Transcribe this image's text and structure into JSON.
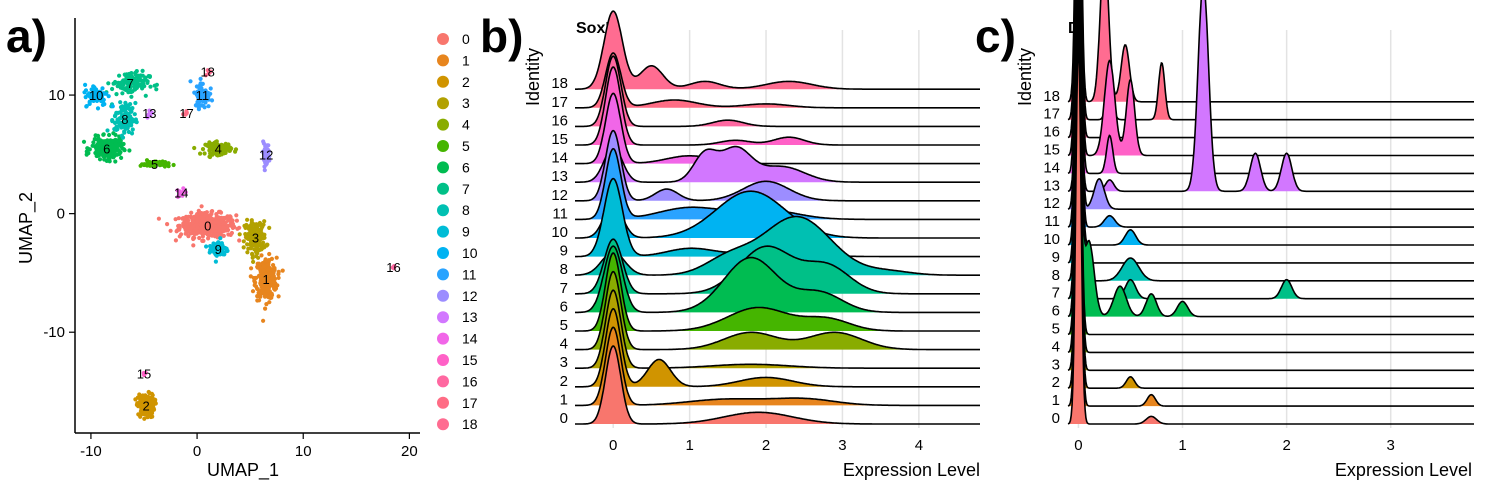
{
  "panels": {
    "a": {
      "label": "a)"
    },
    "b": {
      "label": "b)"
    },
    "c": {
      "label": "c)"
    }
  },
  "palette": [
    "#F8766D",
    "#E7851E",
    "#D09400",
    "#B2A100",
    "#89AC00",
    "#45B500",
    "#00BC51",
    "#00C087",
    "#00C0B2",
    "#00BCD6",
    "#00B3F2",
    "#29A3FF",
    "#9C8DFF",
    "#D277FF",
    "#F166E8",
    "#FF61C7",
    "#FF68A1",
    "#FF6C85",
    "#FF6C91"
  ],
  "chart_data": [
    {
      "type": "scatter",
      "xlabel": "UMAP_1",
      "ylabel": "UMAP_2",
      "xticks": [
        -10,
        0,
        10,
        20
      ],
      "yticks": [
        -10,
        0,
        10
      ],
      "xlim": [
        -11.5,
        21
      ],
      "ylim": [
        -18.5,
        16.5
      ],
      "legend": [
        "0",
        "1",
        "2",
        "3",
        "4",
        "5",
        "6",
        "7",
        "8",
        "9",
        "10",
        "11",
        "12",
        "13",
        "14",
        "15",
        "16",
        "17",
        "18"
      ],
      "legend_position": "right",
      "clusters": [
        {
          "id": "0",
          "x": 1.0,
          "y": -1.0
        },
        {
          "id": "1",
          "x": 6.5,
          "y": -5.5
        },
        {
          "id": "2",
          "x": -4.8,
          "y": -16.2
        },
        {
          "id": "3",
          "x": 5.5,
          "y": -2.0
        },
        {
          "id": "4",
          "x": 2.0,
          "y": 5.5
        },
        {
          "id": "5",
          "x": -4.0,
          "y": 4.2
        },
        {
          "id": "6",
          "x": -8.5,
          "y": 5.5
        },
        {
          "id": "7",
          "x": -6.3,
          "y": 11.0
        },
        {
          "id": "8",
          "x": -6.8,
          "y": 8.0
        },
        {
          "id": "9",
          "x": 2.0,
          "y": -3.0
        },
        {
          "id": "10",
          "x": -9.5,
          "y": 10.0
        },
        {
          "id": "11",
          "x": 0.5,
          "y": 10.0
        },
        {
          "id": "12",
          "x": 6.5,
          "y": 5.0
        },
        {
          "id": "13",
          "x": -4.5,
          "y": 8.5
        },
        {
          "id": "14",
          "x": -1.5,
          "y": 1.8
        },
        {
          "id": "15",
          "x": -5.0,
          "y": -13.5
        },
        {
          "id": "16",
          "x": 18.5,
          "y": -4.5
        },
        {
          "id": "17",
          "x": -1.0,
          "y": 8.5
        },
        {
          "id": "18",
          "x": 1.0,
          "y": 12.0
        }
      ]
    },
    {
      "type": "area",
      "subtype": "ridgeline",
      "title": "SoxN",
      "xlabel": "Expression Level",
      "ylabel": "Identity",
      "xticks": [
        0,
        1,
        2,
        3,
        4
      ],
      "xlim": [
        -0.5,
        4.8
      ],
      "grid": true,
      "categories": [
        "0",
        "1",
        "2",
        "3",
        "4",
        "5",
        "6",
        "7",
        "8",
        "9",
        "10",
        "11",
        "12",
        "13",
        "14",
        "15",
        "16",
        "17",
        "18"
      ],
      "series": [
        {
          "name": "0",
          "peaks": [
            [
              0,
              1.0,
              0.1
            ],
            [
              1.9,
              0.15,
              0.45
            ]
          ]
        },
        {
          "name": "1",
          "peaks": [
            [
              0,
              1.0,
              0.1
            ],
            [
              1.5,
              0.08,
              0.5
            ],
            [
              2.5,
              0.08,
              0.4
            ]
          ]
        },
        {
          "name": "2",
          "peaks": [
            [
              0,
              1.0,
              0.1
            ],
            [
              0.6,
              0.35,
              0.15
            ],
            [
              2.0,
              0.12,
              0.35
            ]
          ]
        },
        {
          "name": "3",
          "peaks": [
            [
              0,
              1.0,
              0.1
            ],
            [
              1.8,
              0.05,
              0.5
            ]
          ]
        },
        {
          "name": "4",
          "peaks": [
            [
              0,
              1.0,
              0.1
            ],
            [
              1.8,
              0.22,
              0.35
            ],
            [
              2.9,
              0.22,
              0.35
            ]
          ]
        },
        {
          "name": "5",
          "peaks": [
            [
              0,
              1.0,
              0.1
            ],
            [
              1.9,
              0.3,
              0.4
            ],
            [
              2.8,
              0.15,
              0.3
            ]
          ]
        },
        {
          "name": "6",
          "peaks": [
            [
              0,
              0.85,
              0.12
            ],
            [
              1.8,
              0.7,
              0.35
            ],
            [
              2.7,
              0.25,
              0.3
            ]
          ]
        },
        {
          "name": "7",
          "peaks": [
            [
              0,
              0.7,
              0.12
            ],
            [
              2.0,
              0.6,
              0.35
            ],
            [
              2.8,
              0.35,
              0.3
            ]
          ]
        },
        {
          "name": "8",
          "peaks": [
            [
              0,
              0.3,
              0.15
            ],
            [
              1.5,
              0.2,
              0.3
            ],
            [
              2.4,
              0.75,
              0.45
            ],
            [
              3.6,
              0.05,
              0.3
            ]
          ]
        },
        {
          "name": "9",
          "peaks": [
            [
              0,
              1.0,
              0.12
            ],
            [
              1.0,
              0.1,
              0.3
            ],
            [
              2.0,
              0.05,
              0.5
            ]
          ]
        },
        {
          "name": "10",
          "peaks": [
            [
              0,
              0.45,
              0.12
            ],
            [
              1.8,
              0.6,
              0.45
            ]
          ]
        },
        {
          "name": "11",
          "peaks": [
            [
              0,
              0.9,
              0.1
            ],
            [
              1.0,
              0.15,
              0.4
            ],
            [
              2.0,
              0.12,
              0.4
            ]
          ]
        },
        {
          "name": "12",
          "peaks": [
            [
              0,
              0.9,
              0.1
            ],
            [
              0.7,
              0.15,
              0.15
            ],
            [
              2.0,
              0.25,
              0.3
            ]
          ]
        },
        {
          "name": "13",
          "peaks": [
            [
              0,
              0.45,
              0.12
            ],
            [
              1.2,
              0.35,
              0.15
            ],
            [
              1.6,
              0.42,
              0.2
            ],
            [
              2.2,
              0.2,
              0.3
            ]
          ]
        },
        {
          "name": "14",
          "peaks": [
            [
              0,
              0.9,
              0.1
            ],
            [
              1.0,
              0.1,
              0.3
            ]
          ]
        },
        {
          "name": "15",
          "peaks": [
            [
              0,
              1.0,
              0.1
            ],
            [
              1.6,
              0.06,
              0.2
            ],
            [
              2.3,
              0.1,
              0.2
            ]
          ]
        },
        {
          "name": "16",
          "peaks": [
            [
              0,
              0.9,
              0.1
            ],
            [
              1.5,
              0.08,
              0.2
            ]
          ]
        },
        {
          "name": "17",
          "peaks": [
            [
              0,
              0.7,
              0.1
            ],
            [
              0.8,
              0.1,
              0.3
            ],
            [
              2.0,
              0.05,
              0.3
            ]
          ]
        },
        {
          "name": "18",
          "peaks": [
            [
              0,
              1.0,
              0.12
            ],
            [
              0.5,
              0.3,
              0.15
            ],
            [
              1.2,
              0.1,
              0.2
            ],
            [
              2.3,
              0.1,
              0.3
            ]
          ]
        }
      ]
    },
    {
      "type": "area",
      "subtype": "ridgeline",
      "title": "D",
      "xlabel": "Expression Level",
      "ylabel": "Identity",
      "xticks": [
        0,
        1,
        2,
        3
      ],
      "xlim": [
        -0.1,
        3.8
      ],
      "grid": true,
      "categories": [
        "0",
        "1",
        "2",
        "3",
        "4",
        "5",
        "6",
        "7",
        "8",
        "9",
        "10",
        "11",
        "12",
        "13",
        "14",
        "15",
        "16",
        "17",
        "18"
      ],
      "series": [
        {
          "name": "0",
          "peaks": [
            [
              0,
              1.0,
              0.025
            ],
            [
              0.7,
              0.02,
              0.05
            ]
          ]
        },
        {
          "name": "1",
          "peaks": [
            [
              0,
              1.0,
              0.025
            ],
            [
              0.7,
              0.03,
              0.04
            ]
          ]
        },
        {
          "name": "2",
          "peaks": [
            [
              0,
              1.0,
              0.025
            ],
            [
              0.5,
              0.03,
              0.04
            ]
          ]
        },
        {
          "name": "3",
          "peaks": [
            [
              0,
              1.0,
              0.025
            ]
          ]
        },
        {
          "name": "4",
          "peaks": [
            [
              0,
              1.0,
              0.025
            ]
          ]
        },
        {
          "name": "5",
          "peaks": [
            [
              0,
              1.0,
              0.025
            ]
          ]
        },
        {
          "name": "6",
          "peaks": [
            [
              0,
              1.0,
              0.025
            ],
            [
              0.1,
              0.2,
              0.05
            ],
            [
              0.4,
              0.08,
              0.06
            ],
            [
              0.7,
              0.06,
              0.05
            ],
            [
              1.0,
              0.04,
              0.05
            ]
          ]
        },
        {
          "name": "7",
          "peaks": [
            [
              0,
              1.0,
              0.025
            ],
            [
              0.5,
              0.05,
              0.05
            ],
            [
              2.0,
              0.05,
              0.05
            ]
          ]
        },
        {
          "name": "8",
          "peaks": [
            [
              0,
              1.0,
              0.025
            ],
            [
              0.5,
              0.06,
              0.08
            ]
          ]
        },
        {
          "name": "9",
          "peaks": [
            [
              0,
              1.0,
              0.025
            ]
          ]
        },
        {
          "name": "10",
          "peaks": [
            [
              0,
              1.0,
              0.025
            ],
            [
              0.5,
              0.04,
              0.05
            ]
          ]
        },
        {
          "name": "11",
          "peaks": [
            [
              0,
              1.0,
              0.025
            ],
            [
              0.3,
              0.03,
              0.05
            ]
          ]
        },
        {
          "name": "12",
          "peaks": [
            [
              0,
              1.0,
              0.025
            ],
            [
              0.2,
              0.08,
              0.05
            ]
          ]
        },
        {
          "name": "13",
          "peaks": [
            [
              0,
              0.6,
              0.025
            ],
            [
              0.3,
              0.03,
              0.04
            ],
            [
              1.2,
              0.55,
              0.05
            ],
            [
              1.7,
              0.1,
              0.05
            ],
            [
              2.0,
              0.1,
              0.05
            ]
          ]
        },
        {
          "name": "14",
          "peaks": [
            [
              0,
              1.0,
              0.025
            ],
            [
              0.3,
              0.1,
              0.03
            ]
          ]
        },
        {
          "name": "15",
          "peaks": [
            [
              0,
              1.0,
              0.025
            ],
            [
              0.3,
              0.25,
              0.05
            ],
            [
              0.5,
              0.2,
              0.04
            ]
          ]
        },
        {
          "name": "16",
          "peaks": [
            [
              0,
              1.0,
              0.025
            ]
          ]
        },
        {
          "name": "17",
          "peaks": [
            [
              0,
              1.0,
              0.025
            ],
            [
              0.3,
              0.1,
              0.03
            ],
            [
              0.8,
              0.15,
              0.03
            ]
          ]
        },
        {
          "name": "18",
          "peaks": [
            [
              0,
              1.0,
              0.025
            ],
            [
              0.25,
              0.4,
              0.04
            ],
            [
              0.45,
              0.15,
              0.04
            ]
          ]
        }
      ]
    }
  ]
}
